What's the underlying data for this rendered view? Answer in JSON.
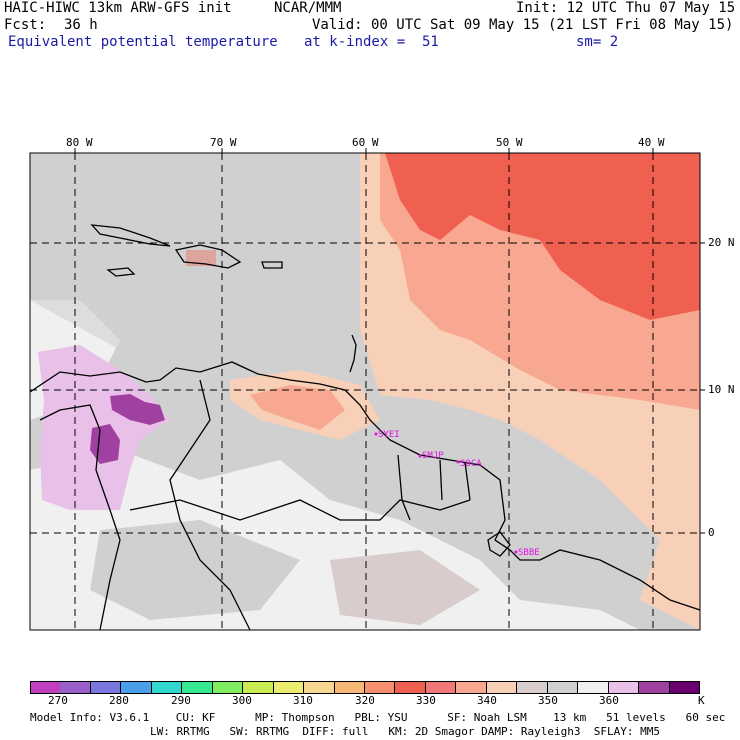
{
  "header": {
    "line1_left": "HAIC-HIWC 13km ARW-GFS init",
    "line1_mid": "NCAR/MMM",
    "line1_right": "Init: 12 UTC Thu 07 May 15",
    "line2_left": "Fcst:",
    "line2_fcst": "36 h",
    "line2_right": "Valid: 00 UTC Sat 09 May 15 (21 LST Fri 08 May 15)",
    "line3_field": "Equivalent potential temperature",
    "line3_level": "at k-index =  51",
    "line3_sm": "sm= 2"
  },
  "map": {
    "lon_labels": [
      "80 W",
      "70 W",
      "60 W",
      "50 W",
      "40 W"
    ],
    "lat_labels": [
      "20 N",
      "10 N",
      "0"
    ],
    "stations": [
      "SYEI",
      "SMJP",
      "SOCA",
      "SBBE"
    ]
  },
  "colorbar": {
    "tick_labels": [
      "270",
      "280",
      "290",
      "300",
      "310",
      "320",
      "330",
      "340",
      "350",
      "360"
    ],
    "units": "K",
    "colors": [
      "#c040c0",
      "#9a5fc8",
      "#7a78e0",
      "#4aa0e8",
      "#30d8d0",
      "#38e890",
      "#80ec60",
      "#c8ec50",
      "#ecec70",
      "#f8d890",
      "#f8b878",
      "#f89070",
      "#f06050",
      "#f07878",
      "#f8a890",
      "#f8d0b8",
      "#d8cccc",
      "#d0d0d0",
      "#f0f0f0",
      "#e8c0e8",
      "#a040a0",
      "#6a0070"
    ]
  },
  "footer": {
    "line1": "Model Info: V3.6.1    CU: KF      MP: Thompson   PBL: YSU      SF: Noah LSM    13 km   51 levels   60 sec",
    "line2": "LW: RRTMG   SW: RRTMG  DIFF: full   KM: 2D Smagor DAMP: Rayleigh3  SFLAY: MM5"
  }
}
